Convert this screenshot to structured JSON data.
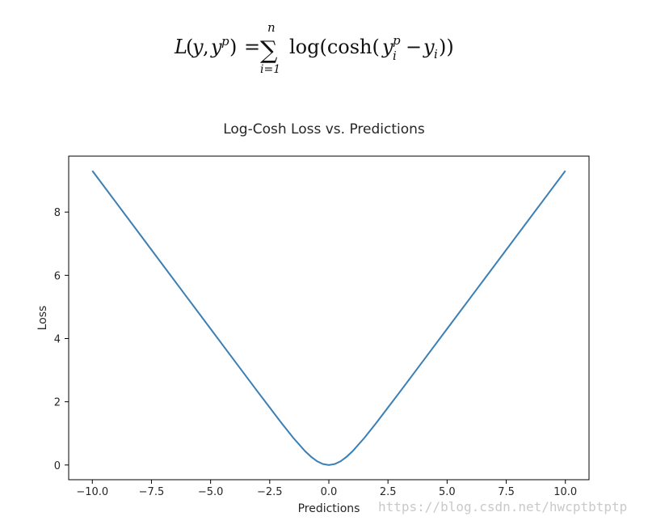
{
  "formula": {
    "lhs_L": "L",
    "lhs_args_open": "(",
    "lhs_y": "y",
    "lhs_comma": ",",
    "lhs_y2": "y",
    "lhs_p_sup": "p",
    "lhs_args_close": ")",
    "equals": "=",
    "sum_symbol": "∑",
    "sum_upper": "n",
    "sum_lower": "i=1",
    "rhs_func": "log(cosh(",
    "rhs_y": "y",
    "rhs_y_sup": "p",
    "rhs_y_sub": "i",
    "rhs_minus": "−",
    "rhs_y2": "y",
    "rhs_y2_sub": "i",
    "rhs_close": "))"
  },
  "chart_data": {
    "type": "line",
    "title": "Log-Cosh Loss vs. Predictions",
    "xlabel": "Predictions",
    "ylabel": "Loss",
    "xlim": [
      -11.0,
      11.0
    ],
    "ylim": [
      -0.465,
      9.77
    ],
    "xticks": [
      -10.0,
      -7.5,
      -5.0,
      -2.5,
      0.0,
      2.5,
      5.0,
      7.5,
      10.0
    ],
    "xtick_labels": [
      "−10.0",
      "−7.5",
      "−5.0",
      "−2.5",
      "0.0",
      "2.5",
      "5.0",
      "7.5",
      "10.0"
    ],
    "yticks": [
      0,
      2,
      4,
      6,
      8
    ],
    "ytick_labels": [
      "0",
      "2",
      "4",
      "6",
      "8"
    ],
    "grid": false,
    "series": [
      {
        "color": "#3a7fb5",
        "x": [
          -10.0,
          -9.0,
          -8.0,
          -7.0,
          -6.0,
          -5.0,
          -4.0,
          -3.0,
          -2.5,
          -2.0,
          -1.5,
          -1.0,
          -0.75,
          -0.5,
          -0.25,
          0.0,
          0.25,
          0.5,
          0.75,
          1.0,
          1.5,
          2.0,
          2.5,
          3.0,
          4.0,
          5.0,
          6.0,
          7.0,
          8.0,
          9.0,
          10.0
        ],
        "y": [
          9.307,
          8.307,
          7.307,
          6.307,
          5.307,
          4.307,
          3.307,
          2.31,
          1.818,
          1.325,
          0.856,
          0.434,
          0.26,
          0.12,
          0.031,
          0.0,
          0.031,
          0.12,
          0.26,
          0.434,
          0.856,
          1.325,
          1.818,
          2.31,
          3.307,
          4.307,
          5.307,
          6.307,
          7.307,
          8.307,
          9.307
        ]
      }
    ]
  },
  "watermark": "https://blog.csdn.net/hwcptbtptp"
}
